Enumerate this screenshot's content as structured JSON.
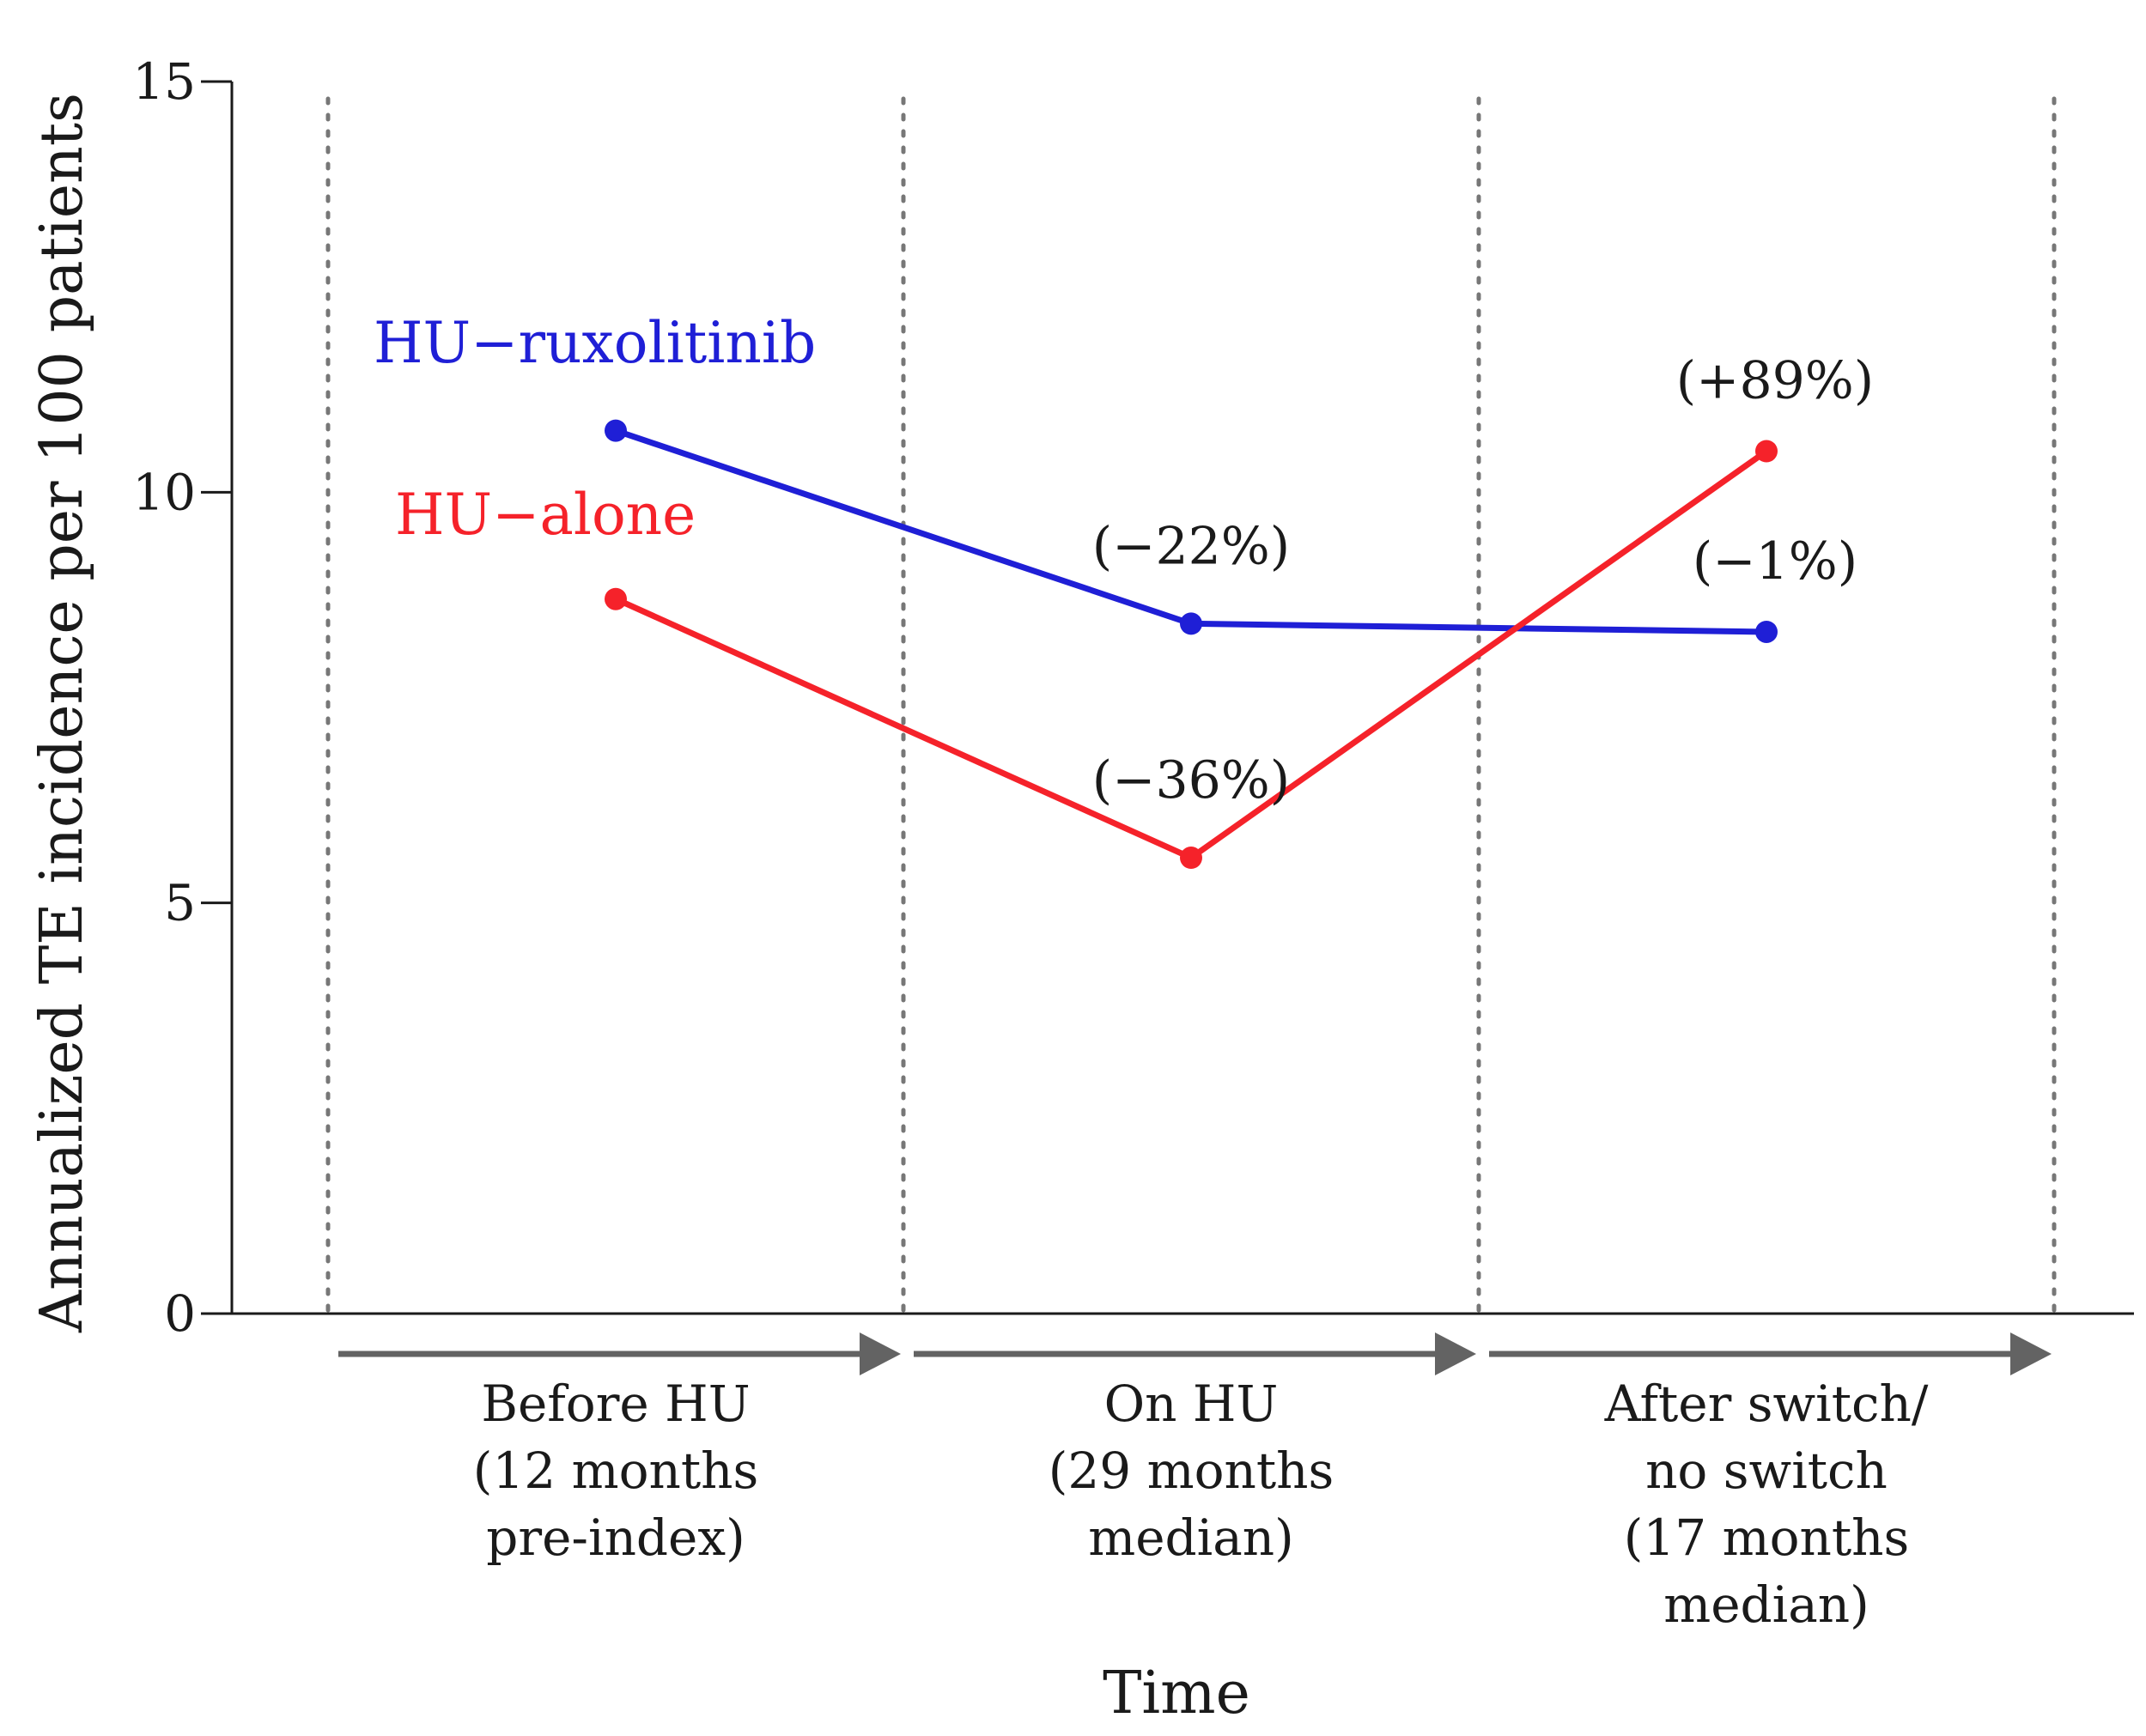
{
  "chart_data": {
    "type": "line",
    "title": "",
    "xlabel": "Time",
    "ylabel": "Annualized TE incidence per 100 patients",
    "ylim": [
      0,
      15
    ],
    "yticks": [
      0,
      5,
      10,
      15
    ],
    "grid": false,
    "categories": [
      [
        "Before HU",
        "(12 months",
        "pre-index)"
      ],
      [
        "On HU",
        "(29 months",
        "median)"
      ],
      [
        "After switch/",
        "no switch",
        "(17 months",
        "median)"
      ]
    ],
    "series": [
      {
        "name": "HU−ruxolitinib",
        "color": "#1f1fd6",
        "values": [
          10.75,
          8.4,
          8.3
        ],
        "changes": [
          "",
          "(−22%)",
          "(−1%)"
        ]
      },
      {
        "name": "HU−alone",
        "color": "#f5222a",
        "values": [
          8.7,
          5.55,
          10.5
        ],
        "changes": [
          "",
          "(−36%)",
          "(+89%)"
        ]
      }
    ]
  }
}
